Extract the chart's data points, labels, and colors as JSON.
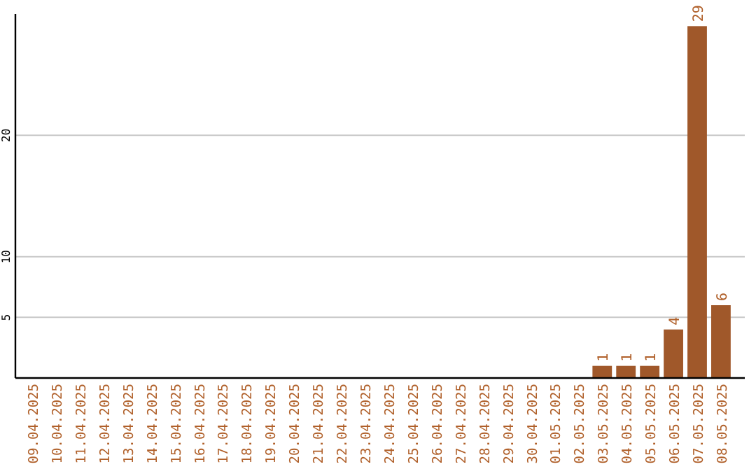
{
  "chart_data": {
    "type": "bar",
    "categories": [
      "09.04.2025",
      "10.04.2025",
      "11.04.2025",
      "12.04.2025",
      "13.04.2025",
      "14.04.2025",
      "15.04.2025",
      "16.04.2025",
      "17.04.2025",
      "18.04.2025",
      "19.04.2025",
      "20.04.2025",
      "21.04.2025",
      "22.04.2025",
      "23.04.2025",
      "24.04.2025",
      "25.04.2025",
      "26.04.2025",
      "27.04.2025",
      "28.04.2025",
      "29.04.2025",
      "30.04.2025",
      "01.05.2025",
      "02.05.2025",
      "03.05.2025",
      "04.05.2025",
      "05.05.2025",
      "06.05.2025",
      "07.05.2025",
      "08.05.2025"
    ],
    "values": [
      0,
      0,
      0,
      0,
      0,
      0,
      0,
      0,
      0,
      0,
      0,
      0,
      0,
      0,
      0,
      0,
      0,
      0,
      0,
      0,
      0,
      0,
      0,
      0,
      1,
      1,
      1,
      4,
      29,
      6
    ],
    "value_labels": [
      null,
      null,
      null,
      null,
      null,
      null,
      null,
      null,
      null,
      null,
      null,
      null,
      null,
      null,
      null,
      null,
      null,
      null,
      null,
      null,
      null,
      null,
      null,
      null,
      "1",
      "1",
      "1",
      "4",
      "29",
      "6"
    ],
    "color": "#a0582a",
    "ylim": [
      0,
      30
    ],
    "yticks": [
      5,
      10,
      20
    ],
    "grid": "y"
  }
}
